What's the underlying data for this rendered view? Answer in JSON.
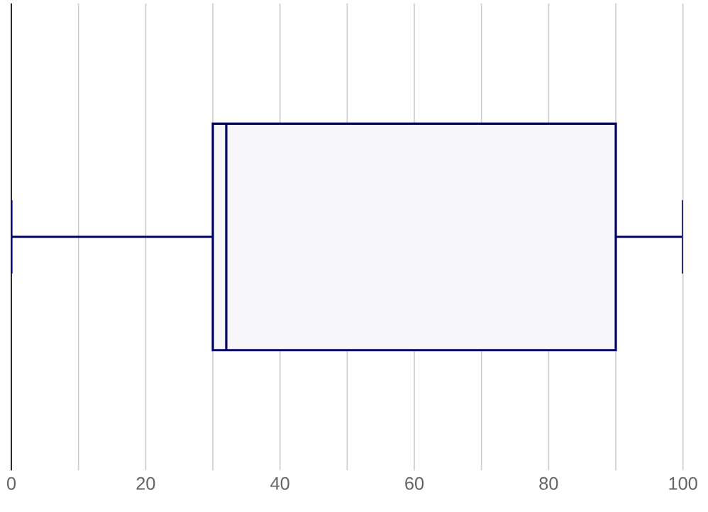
{
  "chart_data": {
    "type": "box",
    "orientation": "horizontal",
    "categories": [
      null
    ],
    "boxes": [
      {
        "low": 0,
        "q1": 30,
        "median": 32,
        "q3": 90,
        "high": 100
      }
    ],
    "color": "#000066",
    "grid": "x",
    "xlim": [
      0,
      100
    ],
    "xticks": [
      0,
      {
        "value": 10,
        "label": null
      },
      20,
      {
        "value": 30,
        "label": null
      },
      40,
      {
        "value": 50,
        "label": null
      },
      60,
      {
        "value": 70,
        "label": null
      },
      80,
      {
        "value": 90,
        "label": null
      },
      100
    ]
  }
}
